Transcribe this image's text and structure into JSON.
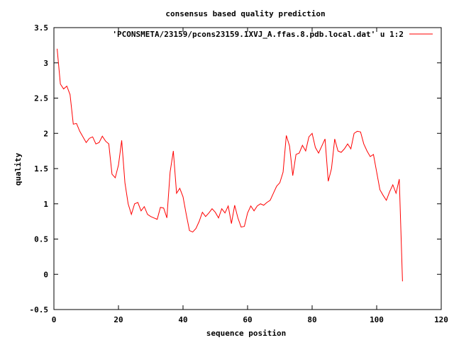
{
  "chart_data": {
    "type": "line",
    "title": "consensus based quality prediction",
    "xlabel": "sequence position",
    "ylabel": "quality",
    "xlim": [
      0,
      120
    ],
    "ylim": [
      -0.5,
      3.5
    ],
    "xticks": [
      "0",
      "20",
      "40",
      "60",
      "80",
      "100",
      "120"
    ],
    "yticks": [
      "-0.5",
      "0",
      "0.5",
      "1",
      "1.5",
      "2",
      "2.5",
      "3",
      "3.5"
    ],
    "grid": false,
    "legend_position": "top-right",
    "series": [
      {
        "name": "'PCONSMETA/23159/pcons23159.1XVJ_A.ffas.8.pdb.local.dat' u 1:2",
        "color": "#ff0000",
        "x": [
          1,
          2,
          3,
          4,
          5,
          6,
          7,
          8,
          9,
          10,
          11,
          12,
          13,
          14,
          15,
          16,
          17,
          18,
          19,
          20,
          21,
          22,
          23,
          24,
          25,
          26,
          27,
          28,
          29,
          30,
          31,
          32,
          33,
          34,
          35,
          36,
          37,
          38,
          39,
          40,
          41,
          42,
          43,
          44,
          45,
          46,
          47,
          48,
          49,
          50,
          51,
          52,
          53,
          54,
          55,
          56,
          57,
          58,
          59,
          60,
          61,
          62,
          63,
          64,
          65,
          66,
          67,
          68,
          69,
          70,
          71,
          72,
          73,
          74,
          75,
          76,
          77,
          78,
          79,
          80,
          81,
          82,
          83,
          84,
          85,
          86,
          87,
          88,
          89,
          90,
          91,
          92,
          93,
          94,
          95,
          96,
          97,
          98,
          99,
          100,
          101,
          102,
          103,
          104,
          105,
          106,
          107,
          108
        ],
        "y": [
          3.2,
          2.7,
          2.63,
          2.67,
          2.55,
          2.13,
          2.14,
          2.03,
          1.95,
          1.87,
          1.93,
          1.95,
          1.85,
          1.87,
          1.96,
          1.89,
          1.85,
          1.42,
          1.37,
          1.55,
          1.9,
          1.3,
          1.0,
          0.85,
          1.0,
          1.02,
          0.9,
          0.96,
          0.85,
          0.82,
          0.8,
          0.78,
          0.95,
          0.94,
          0.8,
          1.45,
          1.75,
          1.15,
          1.22,
          1.1,
          0.85,
          0.62,
          0.6,
          0.65,
          0.75,
          0.88,
          0.82,
          0.87,
          0.93,
          0.88,
          0.8,
          0.93,
          0.87,
          0.97,
          0.72,
          0.98,
          0.8,
          0.67,
          0.68,
          0.87,
          0.97,
          0.9,
          0.97,
          1.0,
          0.98,
          1.02,
          1.05,
          1.15,
          1.25,
          1.3,
          1.45,
          1.97,
          1.82,
          1.4,
          1.7,
          1.72,
          1.83,
          1.75,
          1.95,
          2.0,
          1.8,
          1.72,
          1.82,
          1.92,
          1.32,
          1.5,
          1.92,
          1.75,
          1.73,
          1.78,
          1.85,
          1.78,
          2.0,
          2.03,
          2.02,
          1.85,
          1.75,
          1.67,
          1.7,
          1.45,
          1.2,
          1.12,
          1.05,
          1.17,
          1.27,
          1.15,
          1.35,
          -0.1
        ]
      }
    ]
  }
}
